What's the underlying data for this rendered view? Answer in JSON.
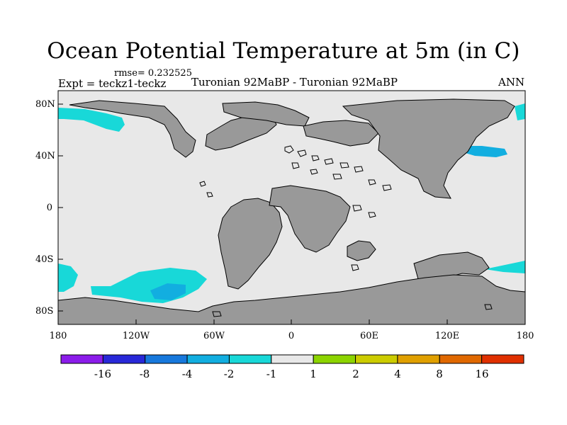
{
  "title": "Ocean Potential Temperature at 5m (in C)",
  "subtitle": {
    "rmse": "rmse= 0.232525",
    "expt": "Expt = teckz1-teckz",
    "center": "Turonian  92MaBP - Turonian  92MaBP",
    "season": "ANN"
  },
  "map": {
    "ocean_color": "#e8e8e8",
    "land_color": "#999999",
    "lat_ticks": [
      "80N",
      "40N",
      "0",
      "40S",
      "80S"
    ],
    "lon_ticks": [
      "180",
      "120W",
      "60W",
      "0",
      "60E",
      "120E",
      "180"
    ]
  },
  "colorbar": {
    "colors": [
      "#8b1cea",
      "#2828d8",
      "#1778dc",
      "#12aee0",
      "#18d8d8",
      "#e8e8e8",
      "#8cd400",
      "#cccc00",
      "#e0a000",
      "#e06800",
      "#e03000"
    ],
    "labels": [
      "-16",
      "-8",
      "-4",
      "-2",
      "-1",
      "1",
      "2",
      "4",
      "8",
      "16"
    ]
  }
}
